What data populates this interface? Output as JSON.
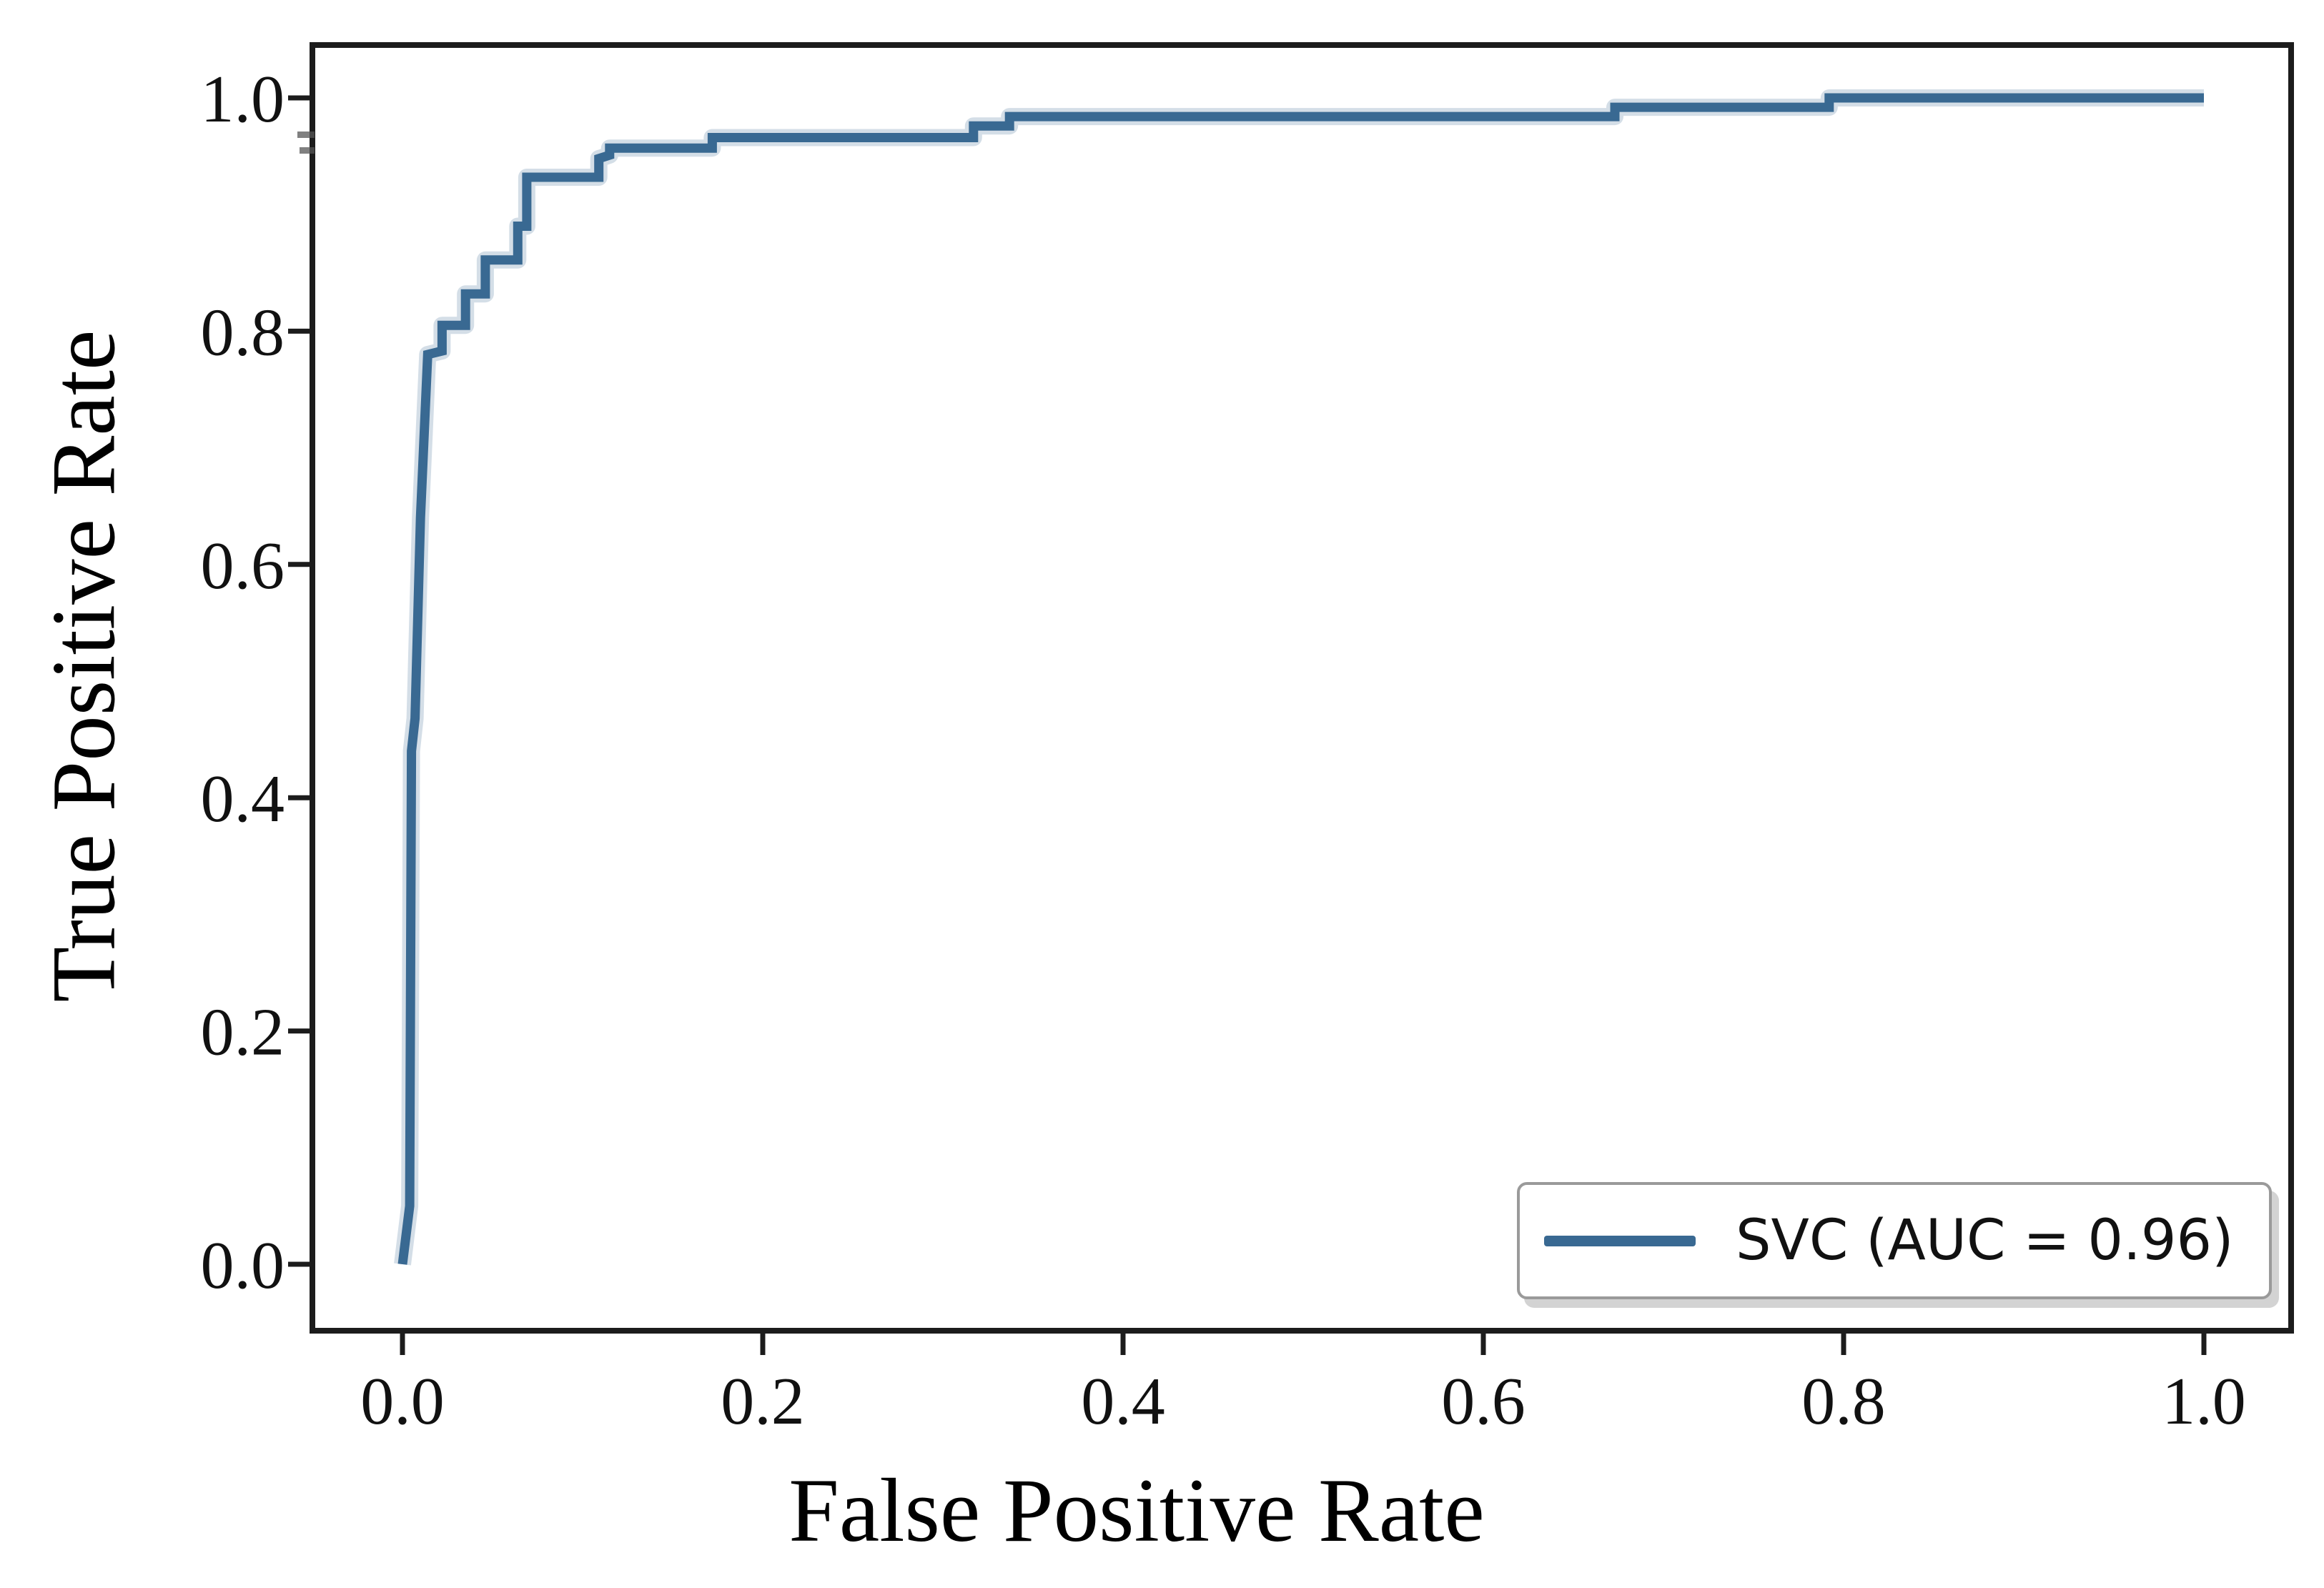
{
  "figure": {
    "background": "#ffffff",
    "axis_color": "#1c1c1c",
    "tick_label_color": "#111111",
    "curve_color": "#396992"
  },
  "chart_data": {
    "type": "line",
    "chart_kind": "roc_curve",
    "title": "",
    "xlabel": "False Positive Rate",
    "ylabel": "True Positive Rate",
    "xlim": [
      -0.05,
      1.05
    ],
    "ylim": [
      -0.057,
      1.046
    ],
    "grid": false,
    "x_tick_values": [
      0.0,
      0.2,
      0.4,
      0.6,
      0.8,
      1.0
    ],
    "x_tick_labels": [
      "0.0",
      "0.2",
      "0.4",
      "0.6",
      "0.8",
      "1.0"
    ],
    "y_tick_values": [
      0.0,
      0.2,
      0.4,
      0.6,
      0.8,
      1.0
    ],
    "y_tick_labels": [
      "0.0",
      "0.2",
      "0.4",
      "0.6",
      "0.8",
      "1.0"
    ],
    "legend": {
      "position": "lower right",
      "entries": [
        {
          "label": "SVC (AUC = 0.96)",
          "color": "#396992"
        }
      ]
    },
    "series": [
      {
        "name": "SVC",
        "auc": 0.96,
        "color": "#396992",
        "points": [
          [
            0.0,
            0.0
          ],
          [
            0.004,
            0.05
          ],
          [
            0.005,
            0.44
          ],
          [
            0.007,
            0.468
          ],
          [
            0.01,
            0.64
          ],
          [
            0.014,
            0.78
          ],
          [
            0.022,
            0.783
          ],
          [
            0.022,
            0.805
          ],
          [
            0.035,
            0.805
          ],
          [
            0.035,
            0.832
          ],
          [
            0.046,
            0.832
          ],
          [
            0.046,
            0.861
          ],
          [
            0.064,
            0.861
          ],
          [
            0.064,
            0.89
          ],
          [
            0.069,
            0.89
          ],
          [
            0.069,
            0.932
          ],
          [
            0.109,
            0.932
          ],
          [
            0.109,
            0.948
          ],
          [
            0.115,
            0.951
          ],
          [
            0.115,
            0.957
          ],
          [
            0.172,
            0.957
          ],
          [
            0.172,
            0.966
          ],
          [
            0.317,
            0.966
          ],
          [
            0.317,
            0.976
          ],
          [
            0.337,
            0.976
          ],
          [
            0.337,
            0.984
          ],
          [
            0.673,
            0.984
          ],
          [
            0.673,
            0.992
          ],
          [
            0.792,
            0.992
          ],
          [
            0.792,
            1.0
          ],
          [
            1.0,
            1.0
          ]
        ]
      }
    ]
  }
}
